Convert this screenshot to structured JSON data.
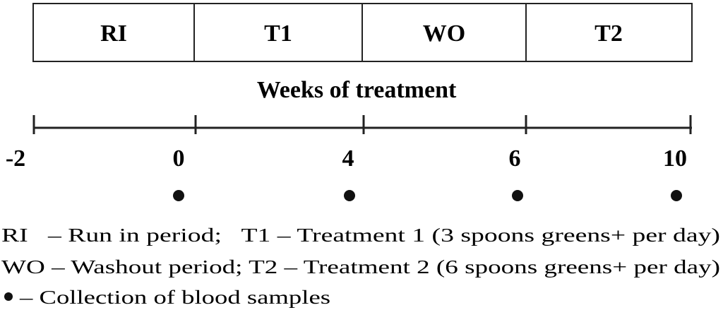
{
  "periods": [
    "RI",
    "T1",
    "WO",
    "T2"
  ],
  "axis_title": "Weeks of treatment",
  "axis_labels": [
    "-2",
    "0",
    "4",
    "6",
    "10"
  ],
  "legend": [
    "RI   – Run in period;   T1 – Treatment 1 (3 spoons greens+ per day)",
    "WO – Washout period; T2 – Treatment 2 (6 spoons greens+ per day)",
    "– Collection of blood samples"
  ]
}
